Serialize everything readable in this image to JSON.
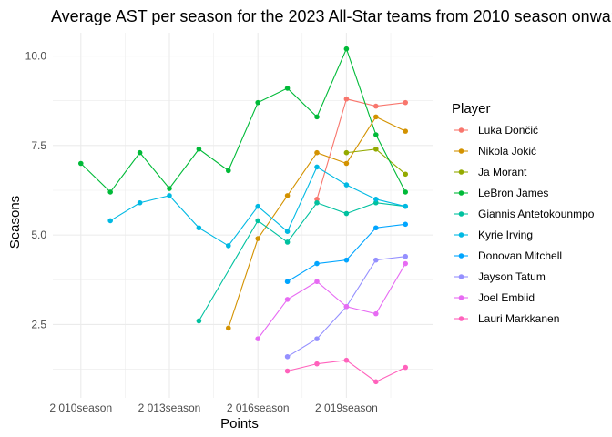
{
  "chart_data": {
    "type": "line",
    "title": "Average AST per season for the 2023 All-Star teams from 2010 season onwards",
    "xlabel": "Points",
    "ylabel": "Seasons",
    "x_ticks": [
      {
        "value": 2010,
        "label": "2 010season"
      },
      {
        "value": 2013,
        "label": "2 013season"
      },
      {
        "value": 2016,
        "label": "2 016season"
      },
      {
        "value": 2019,
        "label": "2 019season"
      }
    ],
    "y_ticks": [
      {
        "value": 2.5,
        "label": "2.5"
      },
      {
        "value": 5.0,
        "label": "5.0"
      },
      {
        "value": 7.5,
        "label": "7.5"
      },
      {
        "value": 10.0,
        "label": "10.0"
      }
    ],
    "xlim": [
      2009.05,
      2021.95
    ],
    "ylim": [
      0.45,
      10.65
    ],
    "legend_title": "Player",
    "legend_position": "right",
    "grid": true,
    "series": [
      {
        "name": "Luka Dončić",
        "color": "#F8766D",
        "points": [
          [
            2018,
            6.0
          ],
          [
            2019,
            8.8
          ],
          [
            2020,
            8.6
          ],
          [
            2021,
            8.7
          ]
        ]
      },
      {
        "name": "Nikola Jokić",
        "color": "#D39200",
        "points": [
          [
            2015,
            2.4
          ],
          [
            2016,
            4.9
          ],
          [
            2017,
            6.1
          ],
          [
            2018,
            7.3
          ],
          [
            2019,
            7.0
          ],
          [
            2020,
            8.3
          ],
          [
            2021,
            7.9
          ]
        ]
      },
      {
        "name": "Ja Morant",
        "color": "#93AA00",
        "points": [
          [
            2019,
            7.3
          ],
          [
            2020,
            7.4
          ],
          [
            2021,
            6.7
          ]
        ]
      },
      {
        "name": "LeBron James",
        "color": "#00BA38",
        "points": [
          [
            2010,
            7.0
          ],
          [
            2011,
            6.2
          ],
          [
            2012,
            7.3
          ],
          [
            2013,
            6.3
          ],
          [
            2014,
            7.4
          ],
          [
            2015,
            6.8
          ],
          [
            2016,
            8.7
          ],
          [
            2017,
            9.1
          ],
          [
            2018,
            8.3
          ],
          [
            2019,
            10.2
          ],
          [
            2020,
            7.8
          ],
          [
            2021,
            6.2
          ]
        ]
      },
      {
        "name": "Giannis Antetokounmpo",
        "color": "#00C19F",
        "points": [
          [
            2014,
            2.6
          ],
          [
            2016,
            5.4
          ],
          [
            2017,
            4.8
          ],
          [
            2018,
            5.9
          ],
          [
            2019,
            5.6
          ],
          [
            2020,
            5.9
          ],
          [
            2021,
            5.8
          ]
        ]
      },
      {
        "name": "Kyrie Irving",
        "color": "#00B9E3",
        "points": [
          [
            2011,
            5.4
          ],
          [
            2012,
            5.9
          ],
          [
            2013,
            6.1
          ],
          [
            2014,
            5.2
          ],
          [
            2015,
            4.7
          ],
          [
            2016,
            5.8
          ],
          [
            2017,
            5.1
          ],
          [
            2018,
            6.9
          ],
          [
            2019,
            6.4
          ],
          [
            2020,
            6.0
          ],
          [
            2021,
            5.8
          ]
        ]
      },
      {
        "name": "Donovan Mitchell",
        "color": "#00A5FF",
        "points": [
          [
            2017,
            3.7
          ],
          [
            2018,
            4.2
          ],
          [
            2019,
            4.3
          ],
          [
            2020,
            5.2
          ],
          [
            2021,
            5.3
          ]
        ]
      },
      {
        "name": "Jayson Tatum",
        "color": "#9590FF",
        "points": [
          [
            2017,
            1.6
          ],
          [
            2018,
            2.1
          ],
          [
            2019,
            3.0
          ],
          [
            2020,
            4.3
          ],
          [
            2021,
            4.4
          ]
        ]
      },
      {
        "name": "Joel Embiid",
        "color": "#E76BF3",
        "points": [
          [
            2016,
            2.1
          ],
          [
            2017,
            3.2
          ],
          [
            2018,
            3.7
          ],
          [
            2019,
            3.0
          ],
          [
            2020,
            2.8
          ],
          [
            2021,
            4.2
          ]
        ]
      },
      {
        "name": "Lauri Markkanen",
        "color": "#FF62BC",
        "points": [
          [
            2017,
            1.2
          ],
          [
            2018,
            1.4
          ],
          [
            2019,
            1.5
          ],
          [
            2020,
            0.9
          ],
          [
            2021,
            1.3
          ]
        ]
      }
    ]
  }
}
